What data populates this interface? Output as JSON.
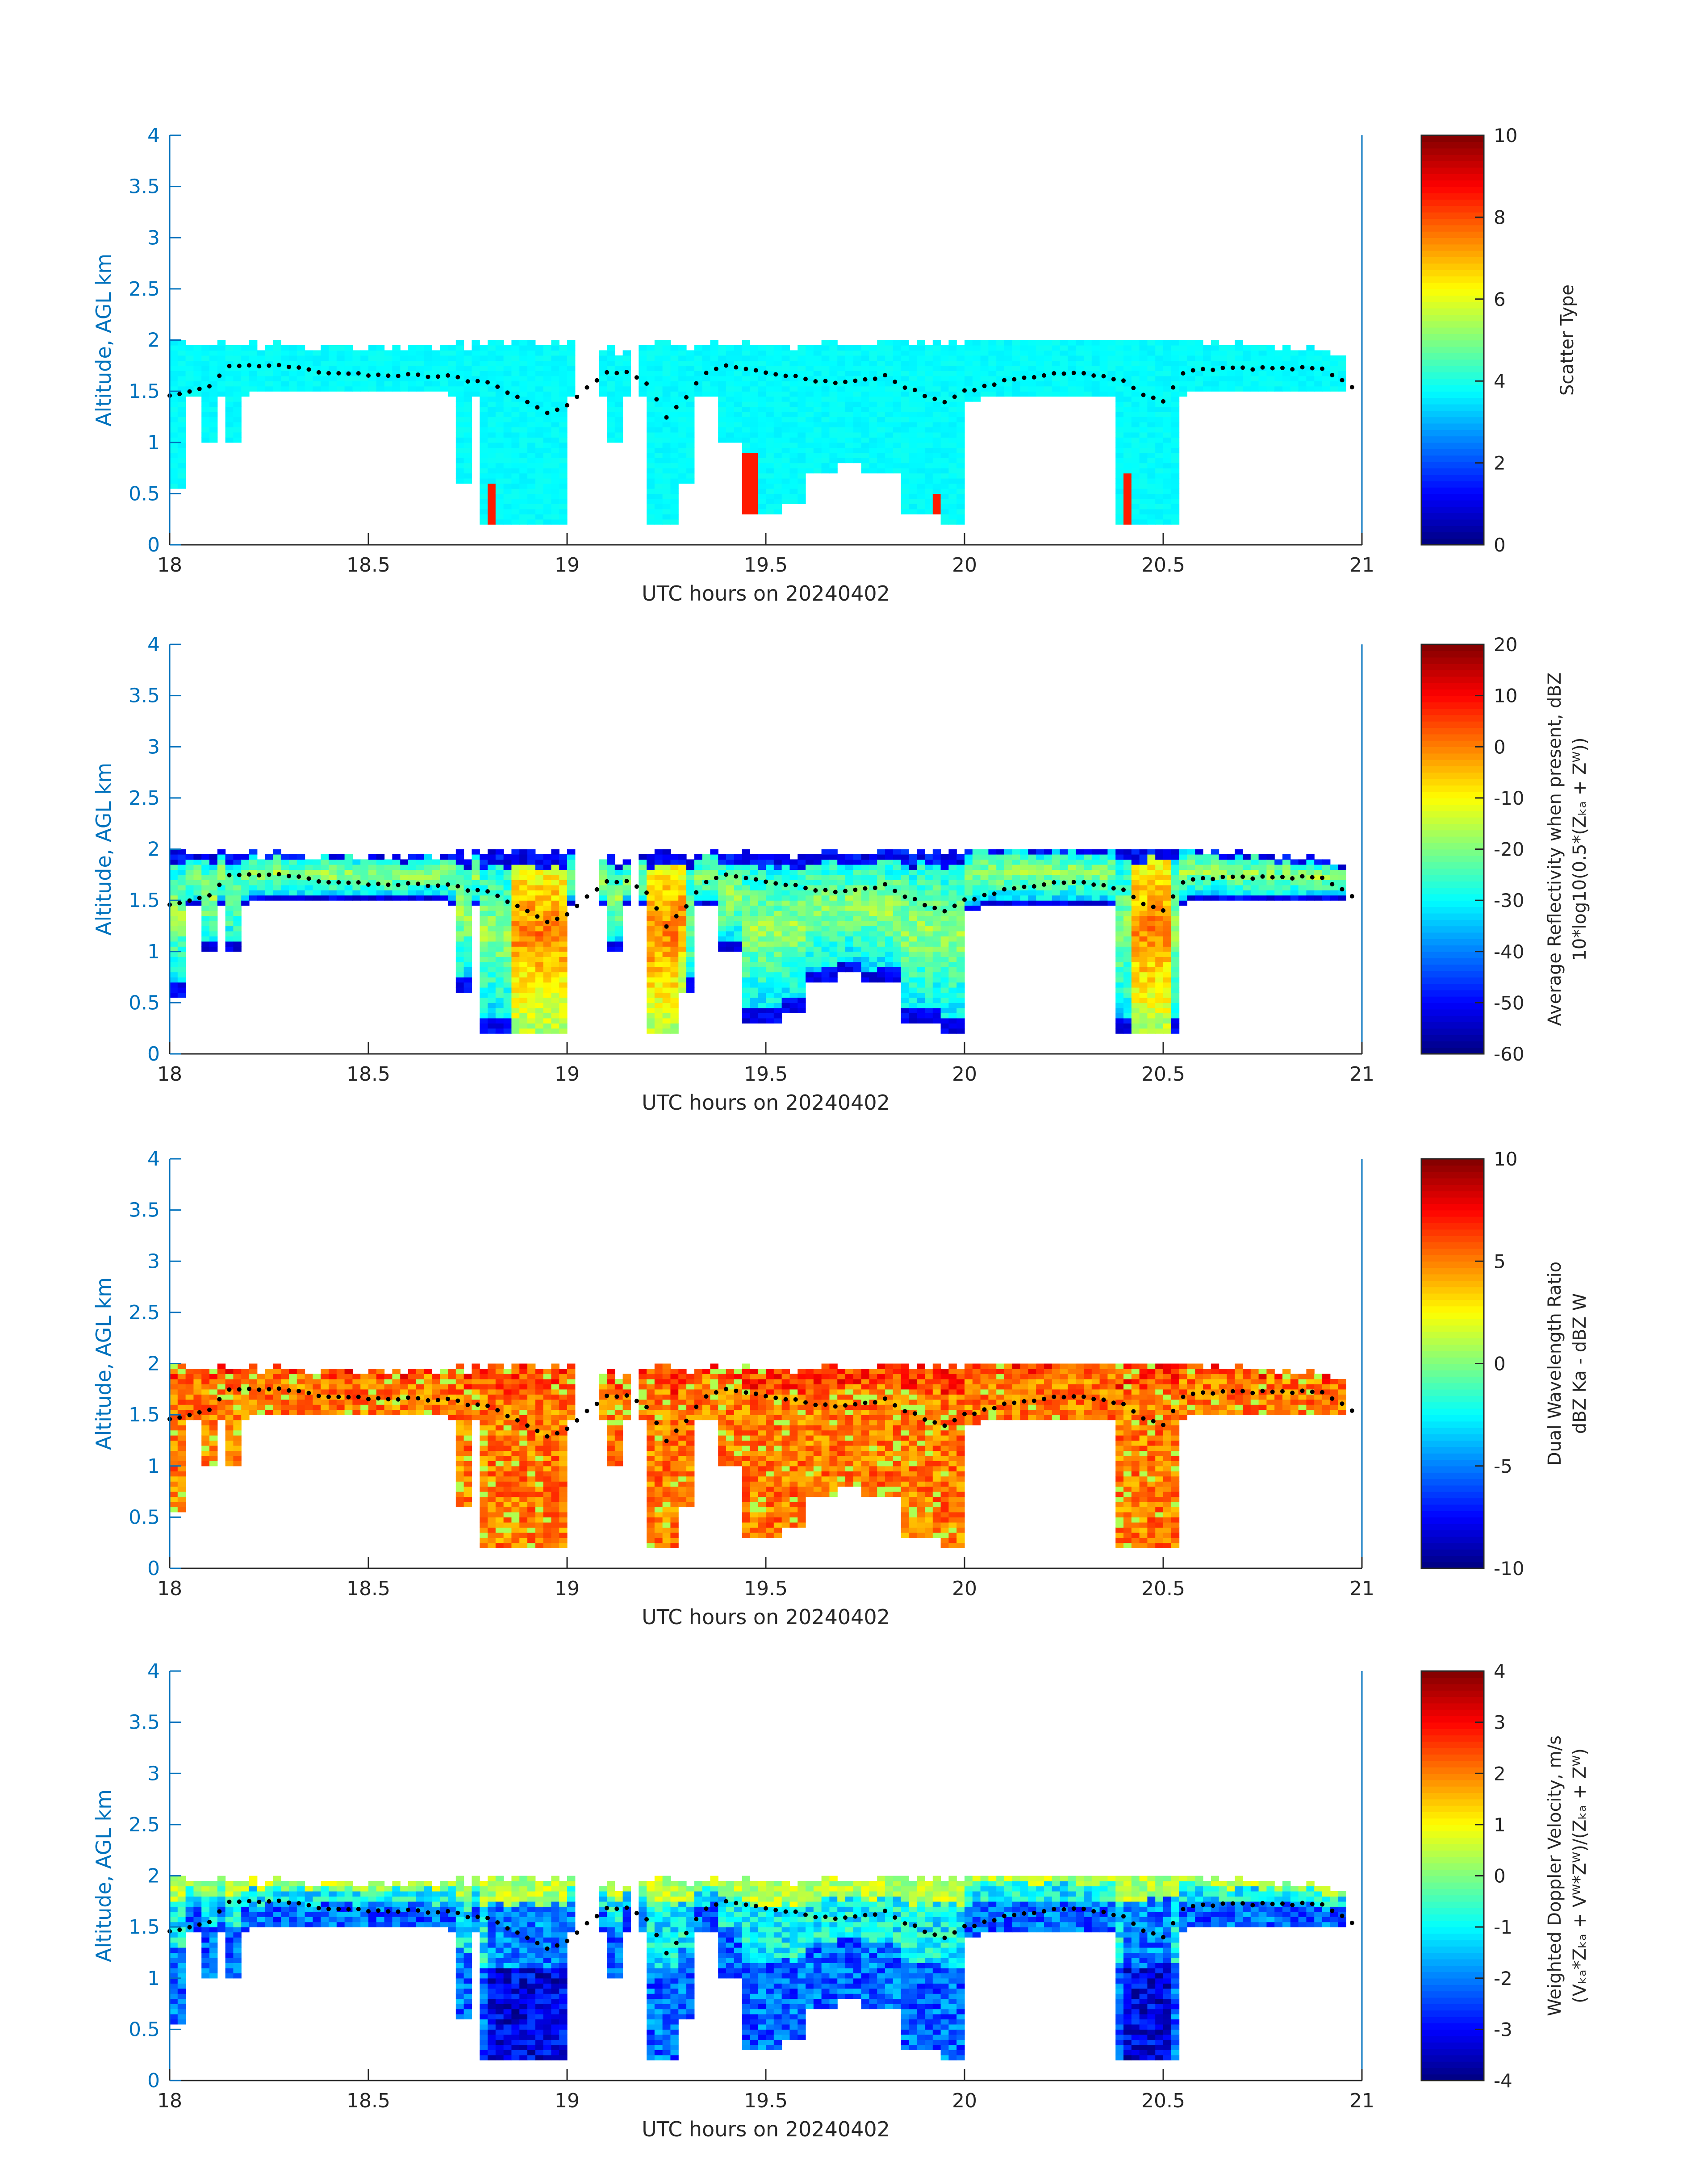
{
  "figure": {
    "date_label": "UTC hours on 20240402"
  },
  "chart_data": [
    {
      "type": "heatmap",
      "xlabel": "UTC hours on 20240402",
      "ylabel": "Altitude, AGL km",
      "xlim": [
        18,
        21
      ],
      "ylim": [
        0,
        4
      ],
      "xticks": [
        "18",
        "18.5",
        "19",
        "19.5",
        "20",
        "20.5",
        "21"
      ],
      "yticks": [
        "0",
        "0.5",
        "1",
        "1.5",
        "2",
        "2.5",
        "3",
        "3.5",
        "4"
      ],
      "colorbar": {
        "label_lines": [
          "Scatter Type"
        ],
        "range": [
          0,
          10
        ],
        "ticks": [
          "0",
          "2",
          "4",
          "6",
          "8",
          "10"
        ],
        "colormap": "jet"
      },
      "field": "scatter",
      "notes": "Mostly scatter type ~3.5-4 (cyan) with a few type ~8.5 (red-orange) pixels"
    },
    {
      "type": "heatmap",
      "xlabel": "UTC hours on 20240402",
      "ylabel": "Altitude, AGL km",
      "xlim": [
        18,
        21
      ],
      "ylim": [
        0,
        4
      ],
      "xticks": [
        "18",
        "18.5",
        "19",
        "19.5",
        "20",
        "20.5",
        "21"
      ],
      "yticks": [
        "0",
        "0.5",
        "1",
        "1.5",
        "2",
        "2.5",
        "3",
        "3.5",
        "4"
      ],
      "colorbar": {
        "label_lines": [
          "Average Reflectivity when present, dBZ",
          "10*log10(0.5*(Zₖₐ + Zᵂ))"
        ],
        "range": [
          -60,
          20
        ],
        "ticks": [
          "-60",
          "-50",
          "-40",
          "-30",
          "-20",
          "-10",
          "0",
          "10",
          "20"
        ],
        "colormap": "jet"
      },
      "field": "reflectivity"
    },
    {
      "type": "heatmap",
      "xlabel": "UTC hours on 20240402",
      "ylabel": "Altitude, AGL km",
      "xlim": [
        18,
        21
      ],
      "ylim": [
        0,
        4
      ],
      "xticks": [
        "18",
        "18.5",
        "19",
        "19.5",
        "20",
        "20.5",
        "21"
      ],
      "yticks": [
        "0",
        "0.5",
        "1",
        "1.5",
        "2",
        "2.5",
        "3",
        "3.5",
        "4"
      ],
      "colorbar": {
        "label_lines": [
          "Dual Wavelength Ratio",
          "dBZ Ka - dBZ W"
        ],
        "range": [
          -10,
          10
        ],
        "ticks": [
          "-10",
          "-5",
          "0",
          "5",
          "10"
        ],
        "colormap": "jet"
      },
      "field": "dwr"
    },
    {
      "type": "heatmap",
      "xlabel": "UTC hours on 20240402",
      "ylabel": "Altitude, AGL km",
      "xlim": [
        18,
        21
      ],
      "ylim": [
        0,
        4
      ],
      "xticks": [
        "18",
        "18.5",
        "19",
        "19.5",
        "20",
        "20.5",
        "21"
      ],
      "yticks": [
        "0",
        "0.5",
        "1",
        "1.5",
        "2",
        "2.5",
        "3",
        "3.5",
        "4"
      ],
      "colorbar": {
        "label_lines": [
          "Weighted Doppler Velocity, m/s",
          "(Vₖₐ*Zₖₐ + Vᵂ*Zᵂ)/(Zₖₐ + Zᵂ)"
        ],
        "range": [
          -4,
          4
        ],
        "ticks": [
          "-4",
          "-3",
          "-2",
          "-1",
          "0",
          "1",
          "2",
          "3",
          "4"
        ],
        "colormap": "jet"
      },
      "field": "velocity"
    }
  ],
  "cloud_profile": {
    "description_units": "x in UTC hours, altitude in km AGL",
    "top": [
      [
        18.0,
        1.95
      ],
      [
        18.1,
        1.95
      ],
      [
        18.2,
        1.93
      ],
      [
        18.3,
        1.92
      ],
      [
        18.5,
        1.92
      ],
      [
        18.7,
        1.9
      ],
      [
        18.78,
        1.95
      ],
      [
        18.9,
        1.95
      ],
      [
        19.0,
        1.93
      ],
      [
        19.1,
        1.92
      ],
      [
        19.15,
        1.85
      ],
      [
        19.2,
        1.95
      ],
      [
        19.4,
        1.92
      ],
      [
        19.6,
        1.93
      ],
      [
        19.8,
        1.95
      ],
      [
        20.0,
        1.98
      ],
      [
        20.2,
        2.0
      ],
      [
        20.4,
        2.0
      ],
      [
        20.5,
        2.02
      ],
      [
        20.6,
        1.95
      ],
      [
        20.8,
        1.9
      ],
      [
        20.95,
        1.85
      ]
    ],
    "dots_altitude": [
      [
        18.0,
        1.47
      ],
      [
        18.05,
        1.5
      ],
      [
        18.1,
        1.55
      ],
      [
        18.15,
        1.74
      ],
      [
        18.2,
        1.76
      ],
      [
        18.3,
        1.74
      ],
      [
        18.4,
        1.68
      ],
      [
        18.5,
        1.66
      ],
      [
        18.6,
        1.66
      ],
      [
        18.7,
        1.64
      ],
      [
        18.8,
        1.58
      ],
      [
        18.9,
        1.4
      ],
      [
        18.95,
        1.3
      ],
      [
        19.0,
        1.35
      ],
      [
        19.05,
        1.55
      ],
      [
        19.1,
        1.68
      ],
      [
        19.15,
        1.68
      ],
      [
        19.2,
        1.58
      ],
      [
        19.25,
        1.25
      ],
      [
        19.3,
        1.45
      ],
      [
        19.35,
        1.68
      ],
      [
        19.4,
        1.74
      ],
      [
        19.5,
        1.68
      ],
      [
        19.6,
        1.62
      ],
      [
        19.7,
        1.58
      ],
      [
        19.8,
        1.65
      ],
      [
        19.9,
        1.45
      ],
      [
        19.95,
        1.38
      ],
      [
        20.0,
        1.5
      ],
      [
        20.1,
        1.6
      ],
      [
        20.2,
        1.66
      ],
      [
        20.3,
        1.68
      ],
      [
        20.4,
        1.6
      ],
      [
        20.45,
        1.45
      ],
      [
        20.5,
        1.4
      ],
      [
        20.55,
        1.68
      ],
      [
        20.6,
        1.72
      ],
      [
        20.7,
        1.72
      ],
      [
        20.8,
        1.72
      ],
      [
        20.9,
        1.72
      ],
      [
        20.97,
        1.55
      ]
    ]
  }
}
